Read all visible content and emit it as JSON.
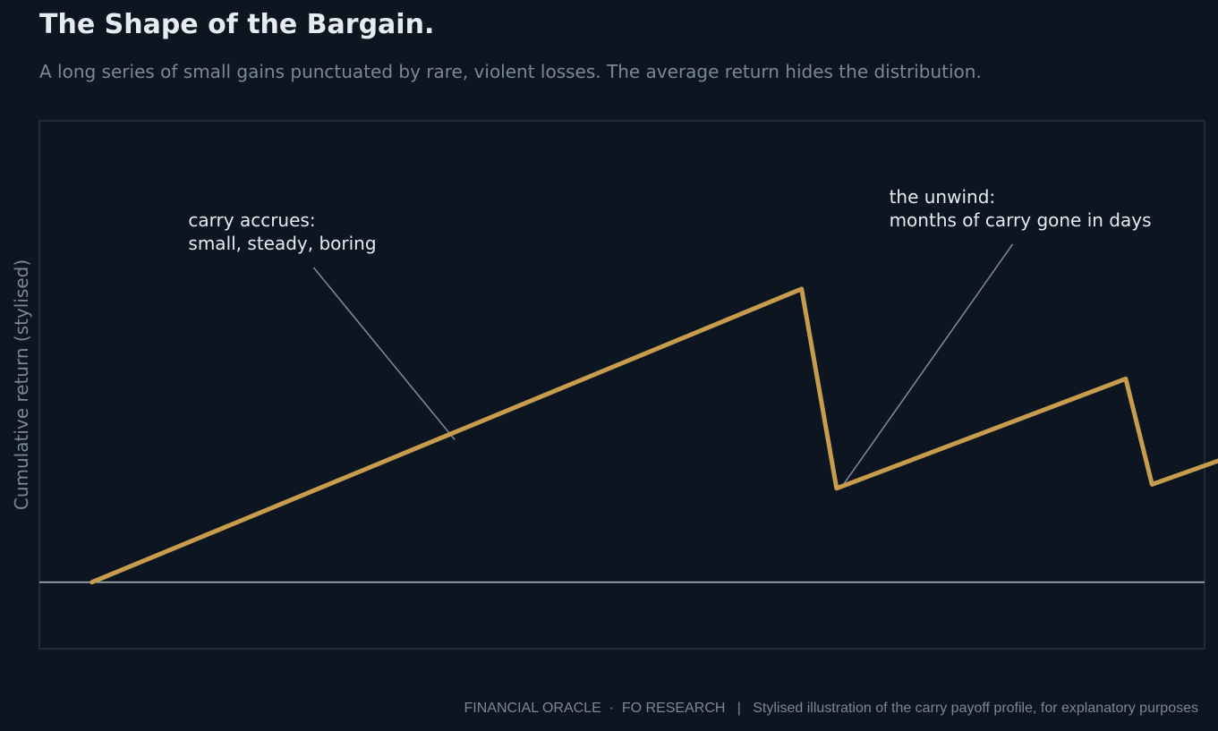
{
  "header": {
    "title": "The Shape of the Bargain.",
    "subtitle": "A long series of small gains punctuated by rare, violent losses. The average return hides the distribution."
  },
  "footer": {
    "text": "FINANCIAL ORACLE  ·  FO RESEARCH   |   Stylised illustration of the carry payoff profile, for explanatory purposes"
  },
  "colors": {
    "background": "#0c1520",
    "line": "#c79c4c",
    "baseline": "#a9b7c3",
    "frame": "#243442",
    "text": "#e6ebf1",
    "muted": "#7a8896"
  },
  "chart_data": {
    "type": "line",
    "title": "",
    "xlabel": "",
    "ylabel": "Cumulative return (stylised)",
    "xlim": [
      -3,
      130
    ],
    "ylim": [
      -17,
      118
    ],
    "grid": false,
    "baseline": 0,
    "series": [
      {
        "values_xy": [
          [
            3,
            0
          ],
          [
            84,
            75
          ],
          [
            88,
            24
          ],
          [
            121,
            52
          ],
          [
            124,
            25
          ],
          [
            134,
            33
          ]
        ]
      }
    ],
    "annotations": [
      {
        "lines": [
          "carry accrues:",
          "small, steady, boring"
        ],
        "target": [
          44,
          36
        ],
        "text_pos": [
          14,
          91
        ]
      },
      {
        "lines": [
          "the unwind:",
          "months of carry gone in days"
        ],
        "target": [
          88,
          24
        ],
        "text_pos": [
          94,
          97
        ]
      }
    ]
  }
}
